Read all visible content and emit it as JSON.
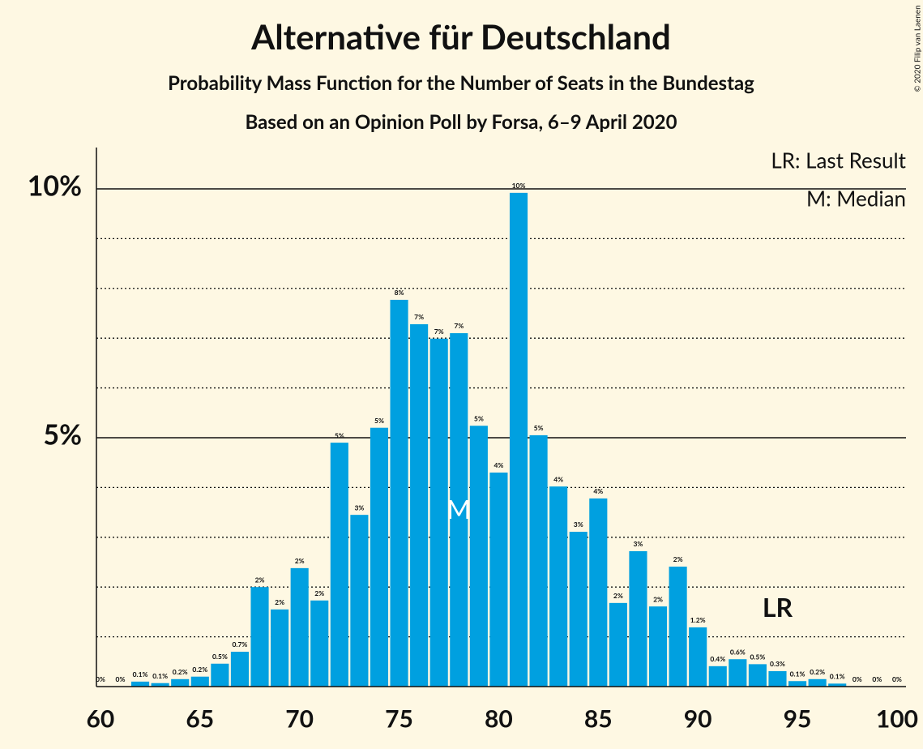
{
  "chart_data": {
    "type": "bar",
    "title": "Alternative für Deutschland",
    "subtitle": "Probability Mass Function for the Number of Seats in the Bundestag",
    "subtitle2": "Based on an Opinion Poll by Forsa, 6–9 April 2020",
    "credit": "© 2020 Filip van Laenen",
    "legend": [
      "LR: Last Result",
      "M: Median"
    ],
    "color": "#00a0e0",
    "x": [
      60,
      61,
      62,
      63,
      64,
      65,
      66,
      67,
      68,
      69,
      70,
      71,
      72,
      73,
      74,
      75,
      76,
      77,
      78,
      79,
      80,
      81,
      82,
      83,
      84,
      85,
      86,
      87,
      88,
      89,
      90,
      91,
      92,
      93,
      94,
      95,
      96,
      97,
      98,
      99,
      100
    ],
    "values": [
      0,
      0,
      0.1,
      0.07,
      0.15,
      0.2,
      0.46,
      0.7,
      2.0,
      1.55,
      2.38,
      1.73,
      4.9,
      3.45,
      5.2,
      7.77,
      7.28,
      6.99,
      7.1,
      5.24,
      4.3,
      9.92,
      5.05,
      4.02,
      3.11,
      3.78,
      1.68,
      2.72,
      1.61,
      2.41,
      1.19,
      0.41,
      0.55,
      0.45,
      0.31,
      0.11,
      0.15,
      0.06,
      0,
      0,
      0
    ],
    "value_labels": [
      "0%",
      "0%",
      "0.1%",
      "0.1%",
      "0.2%",
      "0.2%",
      "0.5%",
      "0.7%",
      "2%",
      "2%",
      "2%",
      "2%",
      "5%",
      "3%",
      "5%",
      "8%",
      "7%",
      "7%",
      "7%",
      "5%",
      "4%",
      "10%",
      "5%",
      "4%",
      "3%",
      "4%",
      "2%",
      "3%",
      "2%",
      "2%",
      "1.2%",
      "0.4%",
      "0.6%",
      "0.5%",
      "0.3%",
      "0.1%",
      "0.2%",
      "0.1%",
      "0%",
      "0%",
      "0%"
    ],
    "xlim": [
      59.8,
      100.45
    ],
    "xticks": [
      60,
      65,
      70,
      75,
      80,
      85,
      90,
      95,
      100
    ],
    "ylim": [
      0,
      10.83
    ],
    "yticks": [
      {
        "value": 5,
        "label": "5%"
      },
      {
        "value": 10,
        "label": "10%"
      }
    ],
    "minor_yticks": [
      1,
      2,
      3,
      4,
      6,
      7,
      8,
      9
    ],
    "annotations": [
      {
        "text": "M",
        "x": 78
      },
      {
        "text": "LR",
        "x": 94
      }
    ]
  }
}
